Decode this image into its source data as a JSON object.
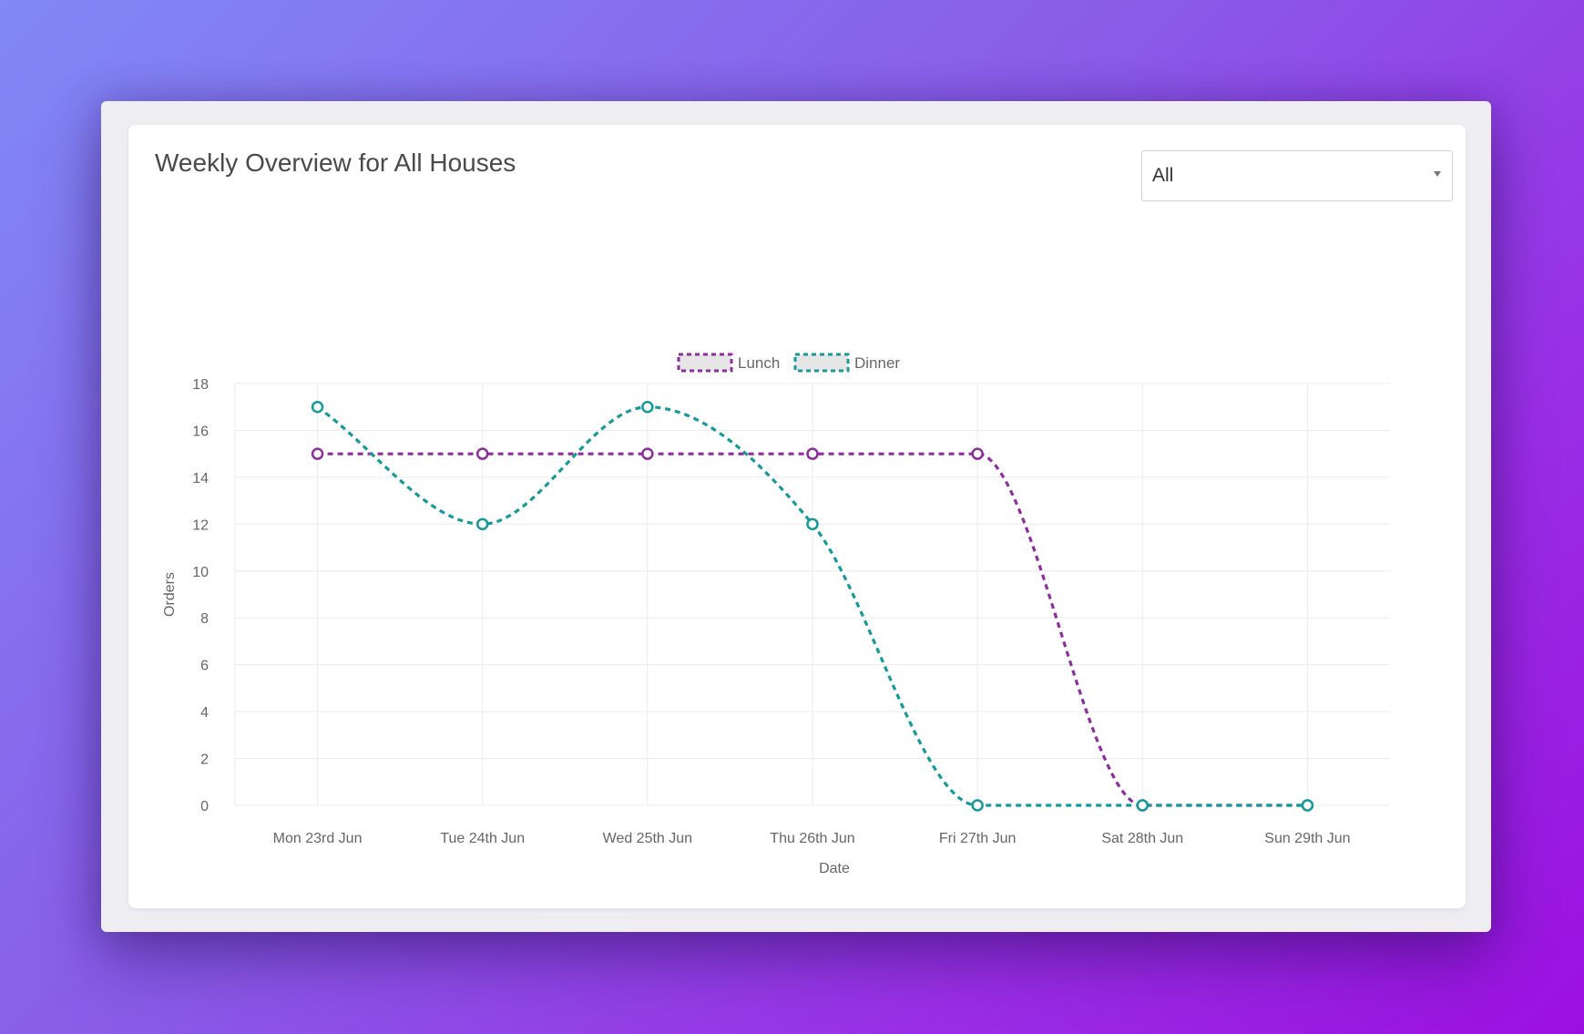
{
  "card": {
    "title": "Weekly Overview for All Houses",
    "filter": {
      "selected": "All"
    }
  },
  "colors": {
    "lunch": "#8e2e9e",
    "dinner": "#17999a",
    "grid": "#ececec"
  },
  "chart_data": {
    "type": "line",
    "xlabel": "Date",
    "ylabel": "Orders",
    "ylim": [
      0,
      18
    ],
    "y_ticks": [
      0,
      2,
      4,
      6,
      8,
      10,
      12,
      14,
      16,
      18
    ],
    "grid": true,
    "legend_position": "top",
    "line_style": "dashed",
    "smooth": true,
    "categories": [
      "Mon 23rd Jun",
      "Tue 24th Jun",
      "Wed 25th Jun",
      "Thu 26th Jun",
      "Fri 27th Jun",
      "Sat 28th Jun",
      "Sun 29th Jun"
    ],
    "series": [
      {
        "name": "Lunch",
        "color": "#8e2e9e",
        "values": [
          15,
          15,
          15,
          15,
          15,
          0,
          0
        ]
      },
      {
        "name": "Dinner",
        "color": "#17999a",
        "values": [
          17,
          12,
          17,
          12,
          0,
          0,
          0
        ]
      }
    ]
  }
}
